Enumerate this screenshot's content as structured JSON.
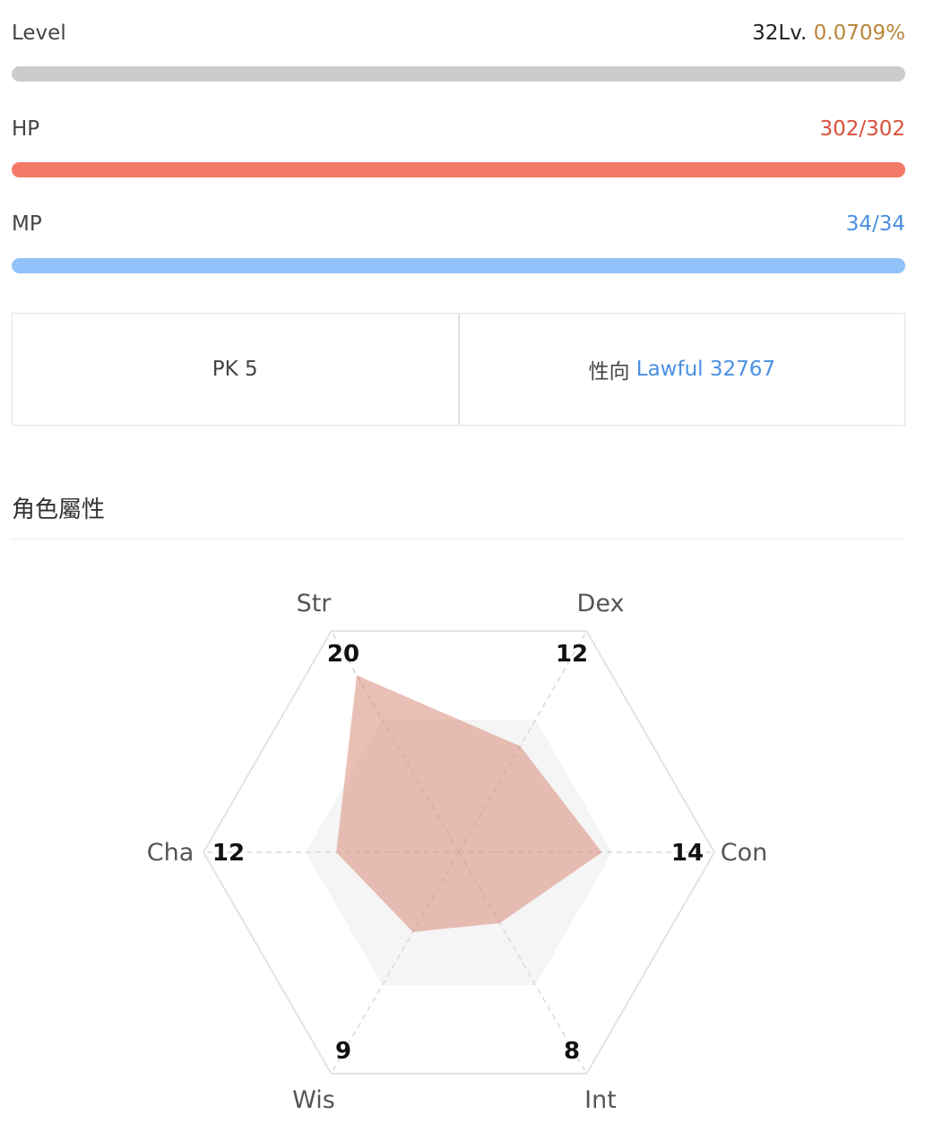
{
  "level": {
    "label": "Level",
    "lv": "32Lv.",
    "percent": "0.0709%",
    "fill_fraction": 0.000709,
    "bar_color": "#cccccc",
    "percent_color": "#b8863b"
  },
  "hp": {
    "label": "HP",
    "value": "302/302",
    "fill_fraction": 1.0,
    "color": "#f47a67"
  },
  "mp": {
    "label": "MP",
    "value": "34/34",
    "fill_fraction": 1.0,
    "color": "#92c2fa",
    "text_color": "#4a90e2"
  },
  "pk": {
    "label": "PK 5"
  },
  "alignment": {
    "label": "性向",
    "value": "Lawful 32767",
    "color": "#4a90e2"
  },
  "section_title": "角色屬性",
  "chart_data": {
    "type": "radar",
    "axes": [
      "Str",
      "Dex",
      "Con",
      "Int",
      "Wis",
      "Cha"
    ],
    "values": [
      20,
      12,
      14,
      8,
      9,
      12
    ],
    "max": 25,
    "band": 15,
    "fill_color": "#d98a78"
  }
}
